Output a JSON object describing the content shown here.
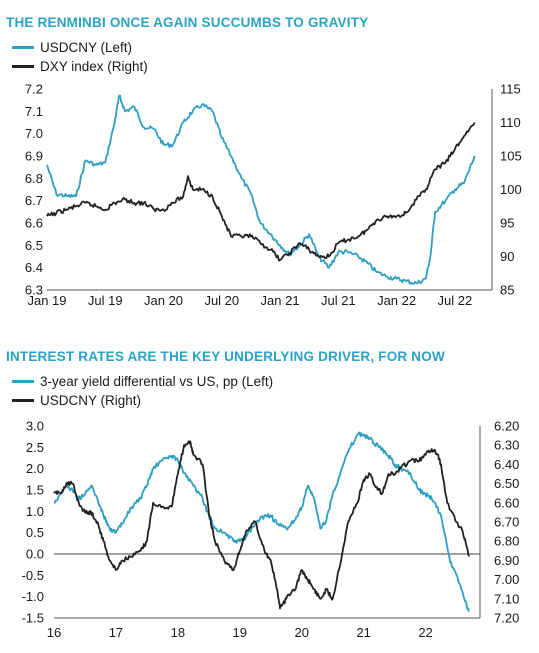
{
  "colors": {
    "series_a": "#2e9fc0",
    "series_b": "#222222",
    "title": "#2aa3c4",
    "zero_line": "#444444"
  },
  "chart_data": [
    {
      "type": "line",
      "title": "THE RENMINBI ONCE AGAIN SUCCUMBS TO GRAVITY",
      "x_ticks": [
        "Jan 19",
        "Jul 19",
        "Jan 20",
        "Jul 20",
        "Jan 21",
        "Jul 21",
        "Jan 22",
        "Jul 22"
      ],
      "x_range": [
        2019.0,
        2022.75
      ],
      "y_left": {
        "range": [
          6.3,
          7.2
        ],
        "ticks": [
          "7.2",
          "7.1",
          "7.0",
          "6.9",
          "6.8",
          "6.7",
          "6.6",
          "6.5",
          "6.4",
          "6.3"
        ]
      },
      "y_right": {
        "range": [
          85,
          115
        ],
        "ticks": [
          "115",
          "110",
          "105",
          "100",
          "95",
          "90",
          "85"
        ]
      },
      "series": [
        {
          "name": "USDCNY (Left)",
          "axis": "left",
          "x": [
            2019.0,
            2019.08,
            2019.17,
            2019.25,
            2019.33,
            2019.42,
            2019.5,
            2019.58,
            2019.62,
            2019.67,
            2019.75,
            2019.83,
            2019.92,
            2020.0,
            2020.08,
            2020.17,
            2020.25,
            2020.33,
            2020.42,
            2020.5,
            2020.58,
            2020.67,
            2020.75,
            2020.83,
            2020.92,
            2021.0,
            2021.08,
            2021.17,
            2021.25,
            2021.33,
            2021.42,
            2021.5,
            2021.58,
            2021.67,
            2021.75,
            2021.83,
            2021.92,
            2022.0,
            2022.08,
            2022.17,
            2022.25,
            2022.29,
            2022.33,
            2022.42,
            2022.5,
            2022.58,
            2022.67
          ],
          "values": [
            6.86,
            6.73,
            6.72,
            6.72,
            6.88,
            6.86,
            6.87,
            7.05,
            7.17,
            7.1,
            7.12,
            7.03,
            7.02,
            6.95,
            6.95,
            7.05,
            7.1,
            7.13,
            7.1,
            6.98,
            6.9,
            6.8,
            6.73,
            6.6,
            6.55,
            6.5,
            6.46,
            6.5,
            6.55,
            6.45,
            6.4,
            6.47,
            6.47,
            6.45,
            6.42,
            6.38,
            6.36,
            6.35,
            6.34,
            6.33,
            6.35,
            6.45,
            6.65,
            6.7,
            6.75,
            6.78,
            6.9
          ]
        },
        {
          "name": "DXY index (Right)",
          "axis": "right",
          "x": [
            2019.0,
            2019.08,
            2019.17,
            2019.25,
            2019.33,
            2019.42,
            2019.5,
            2019.58,
            2019.67,
            2019.75,
            2019.83,
            2019.92,
            2020.0,
            2020.08,
            2020.17,
            2020.21,
            2020.25,
            2020.33,
            2020.42,
            2020.5,
            2020.58,
            2020.67,
            2020.75,
            2020.83,
            2020.92,
            2021.0,
            2021.08,
            2021.17,
            2021.25,
            2021.33,
            2021.42,
            2021.5,
            2021.58,
            2021.67,
            2021.75,
            2021.83,
            2021.92,
            2022.0,
            2022.08,
            2022.17,
            2022.25,
            2022.33,
            2022.42,
            2022.5,
            2022.58,
            2022.67
          ],
          "values": [
            96,
            96.5,
            97,
            97.5,
            98,
            97.5,
            97,
            98,
            98.5,
            98,
            98,
            97,
            97,
            98,
            99,
            102,
            100,
            100,
            99,
            96,
            93,
            93,
            93,
            92,
            91,
            89.5,
            90.5,
            92,
            91,
            90,
            90,
            92,
            92.5,
            93,
            94,
            95.5,
            96,
            96,
            96.5,
            98.5,
            100,
            103,
            104,
            106,
            108,
            110
          ]
        }
      ]
    },
    {
      "type": "line",
      "title": "INTEREST RATES ARE THE KEY UNDERLYING DRIVER, FOR NOW",
      "x_ticks": [
        "16",
        "17",
        "18",
        "19",
        "20",
        "21",
        "22"
      ],
      "x_range": [
        2016.0,
        2022.75
      ],
      "y_left": {
        "range": [
          -1.5,
          3.0
        ],
        "ticks": [
          "3.0",
          "2.5",
          "2.0",
          "1.5",
          "1.0",
          "0.5",
          "0.0",
          "-0.5",
          "-1.0",
          "-1.5"
        ]
      },
      "y_right": {
        "range": [
          6.2,
          7.2
        ],
        "inverted": true,
        "ticks": [
          "6.20",
          "6.30",
          "6.40",
          "6.50",
          "6.60",
          "6.70",
          "6.80",
          "6.90",
          "7.00",
          "7.10",
          "7.20"
        ]
      },
      "series": [
        {
          "name": "3-year yield differential vs US, pp (Left)",
          "axis": "left",
          "x": [
            2016.0,
            2016.1,
            2016.2,
            2016.3,
            2016.4,
            2016.5,
            2016.6,
            2016.7,
            2016.8,
            2016.9,
            2017.0,
            2017.1,
            2017.25,
            2017.4,
            2017.5,
            2017.6,
            2017.75,
            2017.9,
            2018.0,
            2018.1,
            2018.25,
            2018.4,
            2018.5,
            2018.6,
            2018.75,
            2018.9,
            2019.0,
            2019.1,
            2019.25,
            2019.4,
            2019.5,
            2019.6,
            2019.75,
            2019.9,
            2020.0,
            2020.1,
            2020.2,
            2020.3,
            2020.4,
            2020.5,
            2020.6,
            2020.75,
            2020.9,
            2021.0,
            2021.1,
            2021.25,
            2021.4,
            2021.5,
            2021.6,
            2021.75,
            2021.9,
            2022.0,
            2022.1,
            2022.25,
            2022.4,
            2022.5,
            2022.6,
            2022.7
          ],
          "values": [
            1.2,
            1.4,
            1.6,
            1.5,
            1.3,
            1.4,
            1.6,
            1.3,
            0.9,
            0.6,
            0.5,
            0.7,
            1.1,
            1.3,
            1.6,
            2.0,
            2.2,
            2.3,
            2.2,
            1.9,
            1.6,
            1.3,
            0.9,
            0.6,
            0.5,
            0.3,
            0.3,
            0.4,
            0.7,
            0.9,
            0.9,
            0.7,
            0.6,
            0.8,
            1.1,
            1.6,
            1.3,
            0.6,
            0.8,
            1.4,
            1.8,
            2.4,
            2.8,
            2.8,
            2.7,
            2.5,
            2.3,
            2.1,
            2.0,
            1.9,
            1.5,
            1.4,
            1.3,
            0.9,
            -0.2,
            -0.5,
            -0.9,
            -1.35
          ]
        },
        {
          "name": "USDCNY (Right)",
          "axis": "right",
          "x": [
            2016.0,
            2016.1,
            2016.2,
            2016.3,
            2016.4,
            2016.5,
            2016.6,
            2016.7,
            2016.8,
            2016.9,
            2017.0,
            2017.1,
            2017.25,
            2017.4,
            2017.5,
            2017.6,
            2017.75,
            2017.9,
            2018.0,
            2018.1,
            2018.2,
            2018.25,
            2018.4,
            2018.5,
            2018.6,
            2018.75,
            2018.9,
            2019.0,
            2019.1,
            2019.25,
            2019.4,
            2019.5,
            2019.6,
            2019.65,
            2019.75,
            2019.9,
            2020.0,
            2020.1,
            2020.2,
            2020.3,
            2020.4,
            2020.5,
            2020.6,
            2020.75,
            2020.9,
            2021.0,
            2021.1,
            2021.2,
            2021.3,
            2021.4,
            2021.5,
            2021.6,
            2021.75,
            2021.9,
            2022.0,
            2022.1,
            2022.2,
            2022.25,
            2022.35,
            2022.5,
            2022.6,
            2022.7
          ],
          "values": [
            6.55,
            6.55,
            6.5,
            6.5,
            6.6,
            6.65,
            6.65,
            6.7,
            6.8,
            6.9,
            6.95,
            6.9,
            6.88,
            6.85,
            6.8,
            6.6,
            6.62,
            6.62,
            6.45,
            6.3,
            6.28,
            6.35,
            6.4,
            6.65,
            6.8,
            6.9,
            6.95,
            6.85,
            6.75,
            6.7,
            6.85,
            6.9,
            7.05,
            7.15,
            7.1,
            7.05,
            6.95,
            7.0,
            7.05,
            7.1,
            7.05,
            7.1,
            6.95,
            6.7,
            6.6,
            6.48,
            6.45,
            6.52,
            6.55,
            6.45,
            6.45,
            6.42,
            6.38,
            6.38,
            6.35,
            6.32,
            6.35,
            6.4,
            6.6,
            6.7,
            6.75,
            6.88
          ]
        }
      ]
    }
  ]
}
